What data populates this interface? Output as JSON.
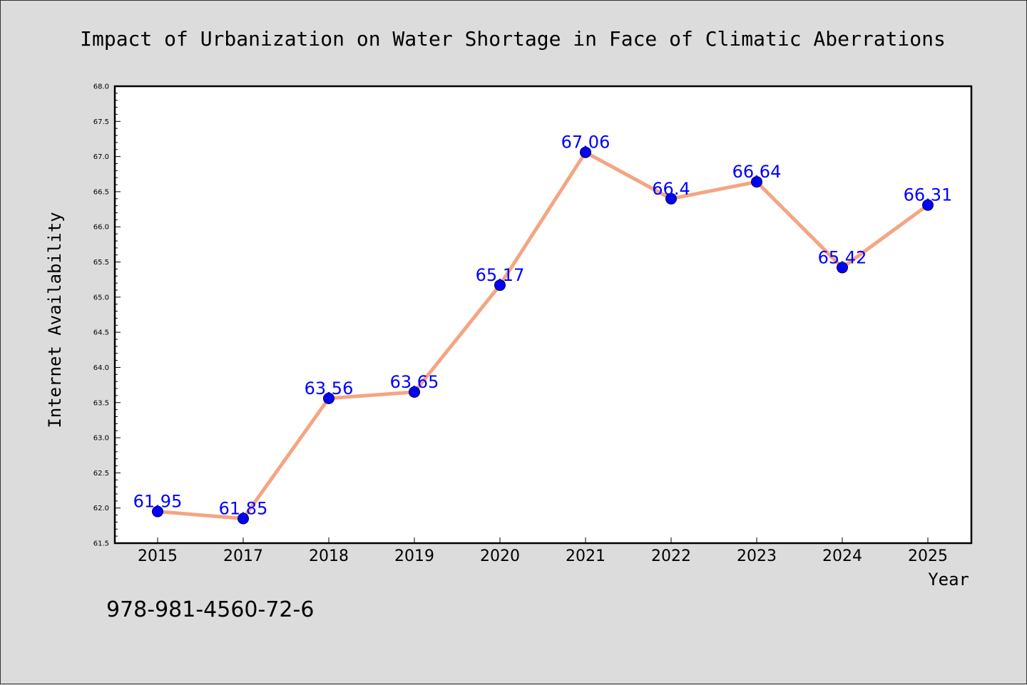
{
  "colors": {
    "background": "#dcdcdc",
    "plot_background": "#ffffff",
    "line": "#f4a582",
    "marker": "#0000ff",
    "label": "#0000ff"
  },
  "chart_data": {
    "type": "line",
    "title": "Impact of Urbanization on Water Shortage in Face of Climatic Aberrations",
    "xlabel": "Year",
    "ylabel": "Internet Availability",
    "categories": [
      "2015",
      "2017",
      "2018",
      "2019",
      "2020",
      "2021",
      "2022",
      "2023",
      "2024",
      "2025"
    ],
    "values": [
      61.95,
      61.85,
      63.56,
      63.65,
      65.17,
      67.06,
      66.4,
      66.64,
      65.42,
      66.31
    ],
    "data_labels": [
      "61.95",
      "61.85",
      "63.56",
      "63.65",
      "65.17",
      "67.06",
      "66.4",
      "66.64",
      "65.42",
      "66.31"
    ],
    "ylim": [
      61.5,
      68.0
    ],
    "yticks": [
      "61.5",
      "62.0",
      "62.5",
      "63.0",
      "63.5",
      "64.0",
      "64.5",
      "65.0",
      "65.5",
      "66.0",
      "66.5",
      "67.0",
      "67.5",
      "68.0"
    ],
    "grid": false,
    "legend": "none"
  },
  "footer": {
    "isbn": "978-981-4560-72-6"
  }
}
